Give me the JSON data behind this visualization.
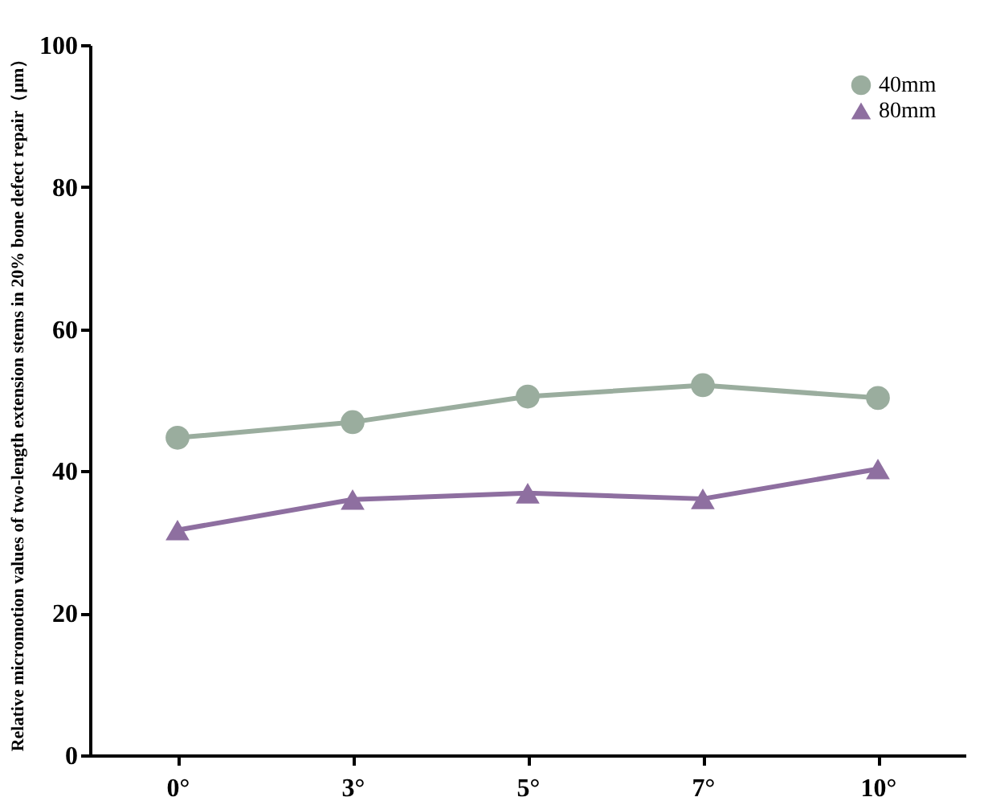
{
  "chart_data": {
    "type": "line",
    "ylabel": "Relative micromotion values of two-length extension stems in 20% bone defect repair（μm）",
    "categories": [
      "0°",
      "3°",
      "5°",
      "7°",
      "10°"
    ],
    "series": [
      {
        "name": "40mm",
        "color": "#9aad9e",
        "marker": "circle",
        "values": [
          44.7,
          46.9,
          50.5,
          52.1,
          50.3
        ]
      },
      {
        "name": "80mm",
        "color": "#8e6fa0",
        "marker": "triangle",
        "values": [
          31.7,
          36.0,
          36.9,
          36.1,
          40.3
        ]
      }
    ],
    "ylim": [
      0,
      100
    ],
    "yticks": [
      0,
      20,
      40,
      60,
      80,
      100
    ],
    "grid": false,
    "legend": "top right",
    "line_style": "solid"
  }
}
